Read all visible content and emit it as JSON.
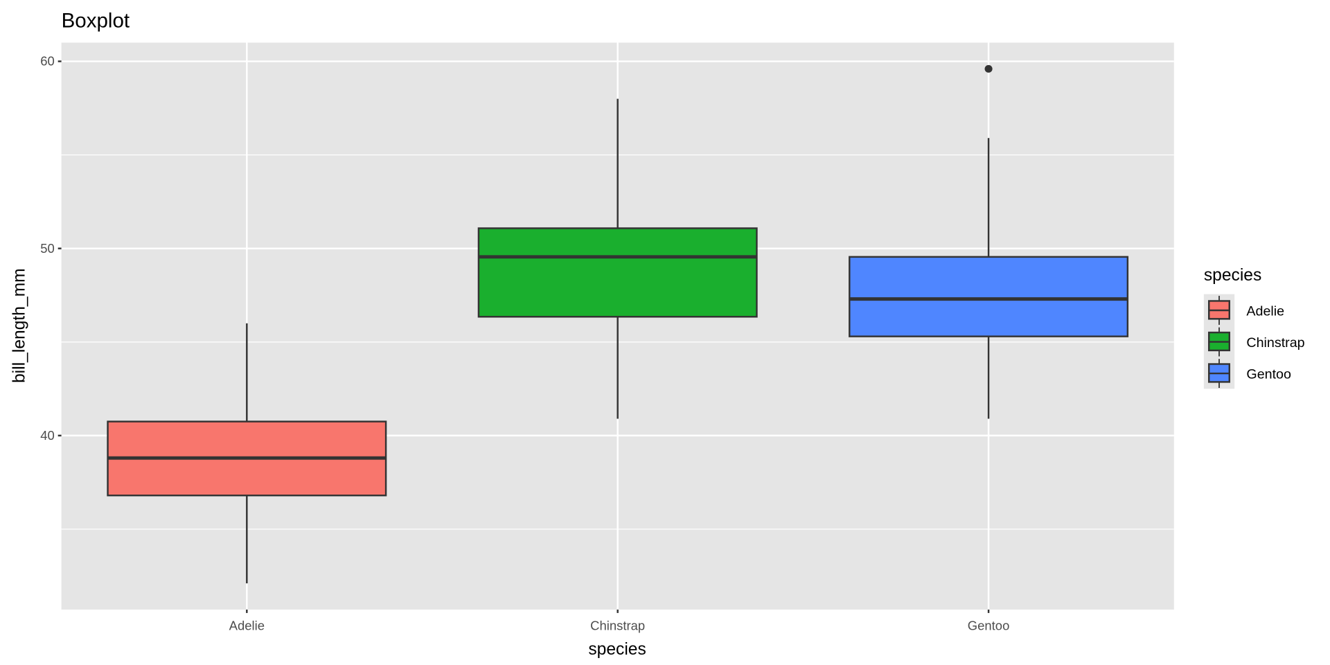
{
  "chart_data": {
    "type": "boxplot",
    "title": "Boxplot",
    "xlabel": "species",
    "ylabel": "bill_length_mm",
    "categories": [
      "Adelie",
      "Chinstrap",
      "Gentoo"
    ],
    "ylim": [
      30.7,
      61.0
    ],
    "yticks": [
      40,
      50,
      60
    ],
    "grid": true,
    "legend": {
      "title": "species",
      "placement": "right",
      "entries": [
        "Adelie",
        "Chinstrap",
        "Gentoo"
      ]
    },
    "colors": {
      "Adelie": "#F8766D",
      "Chinstrap": "#1AAF2E",
      "Gentoo": "#4F86FF",
      "panel": "#E5E5E5",
      "outline": "#333333"
    },
    "boxes": [
      {
        "name": "Adelie",
        "whisker_low": 32.1,
        "q1": 36.8,
        "median": 38.8,
        "q3": 40.75,
        "whisker_high": 46.0,
        "outliers": []
      },
      {
        "name": "Chinstrap",
        "whisker_low": 40.9,
        "q1": 46.35,
        "median": 49.55,
        "q3": 51.08,
        "whisker_high": 58.0,
        "outliers": []
      },
      {
        "name": "Gentoo",
        "whisker_low": 40.9,
        "q1": 45.3,
        "median": 47.3,
        "q3": 49.55,
        "whisker_high": 55.9,
        "outliers": [
          59.6
        ]
      }
    ]
  }
}
